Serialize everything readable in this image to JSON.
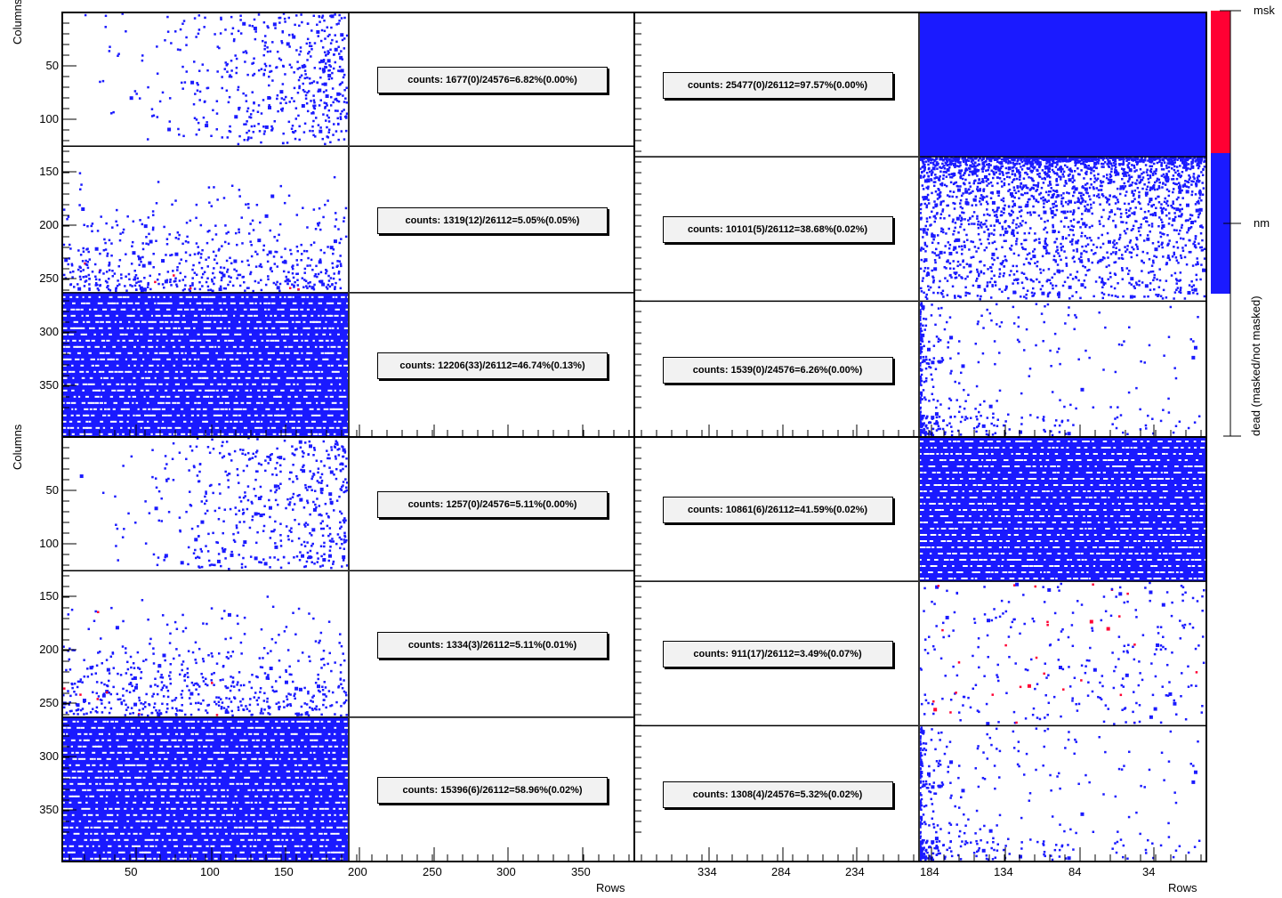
{
  "chart_data": {
    "type": "heatmap",
    "title": "",
    "xlabel": "Rows",
    "ylabel": "Columns",
    "colorbar": {
      "title": "dead (masked/not masked)",
      "levels": [
        {
          "label": "msk",
          "color": "#ff0033"
        },
        {
          "label": "nm",
          "color": "#1a1aff"
        }
      ]
    },
    "y_ticks": [
      "50",
      "100",
      "150",
      "200",
      "250",
      "300",
      "350"
    ],
    "x_ticks_left": [
      "50",
      "100",
      "150",
      "200",
      "250",
      "300",
      "350"
    ],
    "x_ticks_right": [
      "334",
      "284",
      "234",
      "184",
      "134",
      "84",
      "34"
    ],
    "panels": [
      {
        "half": "left",
        "block": "top",
        "stats": [
          "counts: 1677(0)/24576=6.82%(0.00%)",
          "counts: 1319(12)/26112=5.05%(0.05%)",
          "counts: 12206(33)/26112=46.74%(0.13%)"
        ]
      },
      {
        "half": "right",
        "block": "top",
        "stats": [
          "counts: 25477(0)/26112=97.57%(0.00%)",
          "counts: 10101(5)/26112=38.68%(0.02%)",
          "counts: 1539(0)/24576=6.26%(0.00%)"
        ]
      },
      {
        "half": "left",
        "block": "bottom",
        "stats": [
          "counts: 1257(0)/24576=5.11%(0.00%)",
          "counts: 1334(3)/26112=5.11%(0.01%)",
          "counts: 15396(6)/26112=58.96%(0.02%)"
        ]
      },
      {
        "half": "right",
        "block": "bottom",
        "stats": [
          "counts: 10861(6)/26112=41.59%(0.02%)",
          "counts: 911(17)/26112=3.49%(0.07%)",
          "counts: 1308(4)/24576=5.32%(0.02%)"
        ]
      }
    ]
  }
}
